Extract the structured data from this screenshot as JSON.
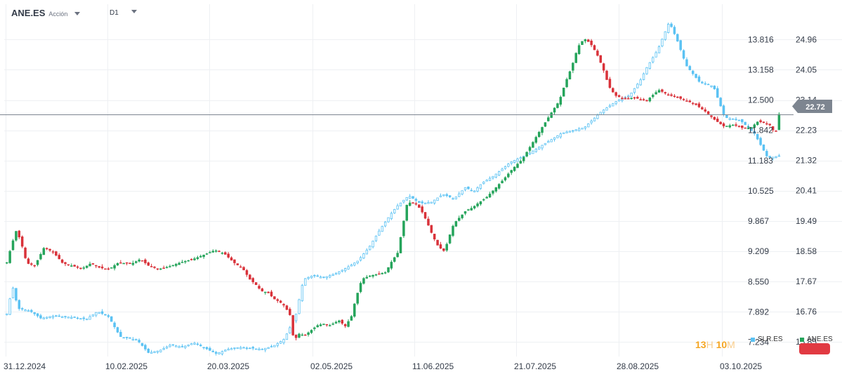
{
  "toolbar": {
    "symbol": "ANE.ES",
    "symbol_type": "Acción",
    "timeframe": "D1"
  },
  "current_price_label": "22.72",
  "timer": {
    "hours": "13",
    "h_unit": "H",
    "minutes": "10",
    "m_unit": "M"
  },
  "colors": {
    "up": "#25a45b",
    "down": "#d9323a",
    "compare": "#5bc2f3",
    "price_line": "#7d8590",
    "badge": "#e13a42"
  },
  "chart_data": {
    "type": "candlestick",
    "x_ticks": [
      "31.12.2024",
      "10.02.2025",
      "20.03.2025",
      "02.05.2025",
      "11.06.2025",
      "21.07.2025",
      "28.08.2025",
      "03.10.2025"
    ],
    "y_left_ticks": [
      "13.816",
      "13.158",
      "12.500",
      "11.842",
      "11.183",
      "10.525",
      "9.867",
      "9.209",
      "8.550",
      "7.892",
      "7.234"
    ],
    "y_right_ticks": [
      "24.96",
      "24.05",
      "23.14",
      "22.23",
      "21.32",
      "20.41",
      "19.49",
      "18.58",
      "17.67",
      "16.76",
      "15.85"
    ],
    "left_axis_range": [
      6.92,
      14.28
    ],
    "right_axis_range": [
      15.41,
      25.61
    ],
    "last_price": 22.72,
    "grid": true,
    "legend_position": "bottom-right",
    "series": [
      {
        "name": "SLR.ES",
        "axis": "left",
        "color": "#5bc2f3",
        "kf": [
          [
            0,
            7.85
          ],
          [
            5,
            8.45
          ],
          [
            10,
            7.96
          ],
          [
            20,
            7.92
          ],
          [
            30,
            7.75
          ],
          [
            40,
            7.8
          ],
          [
            55,
            7.78
          ],
          [
            70,
            7.73
          ],
          [
            80,
            7.9
          ],
          [
            90,
            7.78
          ],
          [
            100,
            7.35
          ],
          [
            115,
            7.28
          ],
          [
            125,
            7.0
          ],
          [
            135,
            7.05
          ],
          [
            145,
            7.18
          ],
          [
            155,
            7.12
          ],
          [
            165,
            7.22
          ],
          [
            175,
            7.1
          ],
          [
            185,
            6.98
          ],
          [
            195,
            7.08
          ],
          [
            205,
            7.12
          ],
          [
            215,
            7.1
          ],
          [
            225,
            7.08
          ],
          [
            235,
            7.14
          ],
          [
            245,
            7.3
          ],
          [
            255,
            7.8
          ],
          [
            262,
            8.6
          ],
          [
            270,
            8.68
          ],
          [
            280,
            8.64
          ],
          [
            290,
            8.72
          ],
          [
            300,
            8.85
          ],
          [
            310,
            9.0
          ],
          [
            320,
            9.3
          ],
          [
            330,
            9.7
          ],
          [
            340,
            10.05
          ],
          [
            345,
            10.2
          ],
          [
            355,
            10.42
          ],
          [
            365,
            10.25
          ],
          [
            375,
            10.28
          ],
          [
            385,
            10.45
          ],
          [
            395,
            10.35
          ],
          [
            405,
            10.6
          ],
          [
            412,
            10.5
          ],
          [
            420,
            10.7
          ],
          [
            430,
            10.85
          ],
          [
            445,
            11.15
          ],
          [
            460,
            11.32
          ],
          [
            475,
            11.55
          ],
          [
            490,
            11.78
          ],
          [
            510,
            11.9
          ],
          [
            525,
            12.25
          ],
          [
            540,
            12.5
          ],
          [
            550,
            12.6
          ],
          [
            560,
            12.95
          ],
          [
            565,
            13.2
          ],
          [
            575,
            13.6
          ],
          [
            585,
            14.2
          ],
          [
            592,
            13.8
          ],
          [
            600,
            13.25
          ],
          [
            612,
            12.88
          ],
          [
            624,
            12.8
          ],
          [
            634,
            12.12
          ],
          [
            648,
            12.05
          ],
          [
            660,
            11.78
          ],
          [
            672,
            11.24
          ],
          [
            682,
            11.28
          ]
        ]
      },
      {
        "name": "ANE.ES",
        "axis": "right",
        "up_color": "#25a45b",
        "down_color": "#d9323a",
        "kf": [
          [
            0,
            18.25
          ],
          [
            8,
            18.8
          ],
          [
            15,
            19.2
          ],
          [
            22,
            18.92
          ],
          [
            32,
            18.22
          ],
          [
            45,
            18.15
          ],
          [
            60,
            18.7
          ],
          [
            75,
            18.55
          ],
          [
            90,
            18.22
          ],
          [
            105,
            18.15
          ],
          [
            120,
            18.05
          ],
          [
            135,
            18.22
          ],
          [
            150,
            18.08
          ],
          [
            165,
            18.05
          ],
          [
            180,
            18.25
          ],
          [
            200,
            18.2
          ],
          [
            215,
            18.35
          ],
          [
            230,
            18.12
          ],
          [
            245,
            18.05
          ],
          [
            260,
            18.12
          ],
          [
            280,
            18.25
          ],
          [
            300,
            18.35
          ],
          [
            320,
            18.5
          ],
          [
            335,
            18.62
          ],
          [
            350,
            18.52
          ],
          [
            365,
            18.25
          ],
          [
            380,
            18.06
          ],
          [
            392,
            17.72
          ],
          [
            400,
            17.6
          ],
          [
            410,
            17.38
          ],
          [
            420,
            17.35
          ],
          [
            430,
            17.15
          ],
          [
            440,
            17.05
          ],
          [
            448,
            16.92
          ],
          [
            453,
            16.75
          ],
          [
            458,
            16.6
          ],
          [
            462,
            15.85
          ],
          [
            470,
            16.1
          ],
          [
            480,
            16.05
          ],
          [
            490,
            16.2
          ],
          [
            500,
            16.35
          ],
          [
            510,
            16.4
          ],
          [
            520,
            16.35
          ],
          [
            535,
            16.5
          ],
          [
            545,
            16.32
          ],
          [
            555,
            16.62
          ],
          [
            562,
            17.15
          ],
          [
            572,
            17.75
          ],
          [
            585,
            17.85
          ],
          [
            598,
            17.9
          ],
          [
            610,
            17.95
          ],
          [
            620,
            18.28
          ],
          [
            630,
            18.55
          ],
          [
            636,
            19.18
          ],
          [
            645,
            20.05
          ],
          [
            653,
            20.05
          ],
          [
            660,
            20.0
          ],
          [
            668,
            19.8
          ],
          [
            676,
            19.5
          ],
          [
            686,
            19.05
          ],
          [
            695,
            18.72
          ],
          [
            705,
            18.58
          ],
          [
            712,
            19.0
          ],
          [
            720,
            19.42
          ],
          [
            730,
            19.62
          ],
          [
            740,
            19.82
          ],
          [
            750,
            19.9
          ],
          [
            760,
            20.05
          ],
          [
            772,
            20.2
          ],
          [
            785,
            20.45
          ],
          [
            800,
            20.75
          ],
          [
            815,
            21.08
          ],
          [
            830,
            21.35
          ],
          [
            845,
            21.8
          ],
          [
            858,
            22.2
          ],
          [
            870,
            22.55
          ],
          [
            880,
            22.85
          ],
          [
            890,
            23.12
          ],
          [
            900,
            23.68
          ],
          [
            910,
            24.15
          ],
          [
            920,
            24.75
          ],
          [
            930,
            25.0
          ],
          [
            940,
            24.85
          ],
          [
            950,
            24.55
          ],
          [
            960,
            24.12
          ],
          [
            970,
            23.55
          ],
          [
            980,
            23.28
          ],
          [
            995,
            23.18
          ],
          [
            1010,
            23.22
          ],
          [
            1030,
            23.12
          ],
          [
            1050,
            23.45
          ],
          [
            1065,
            23.3
          ],
          [
            1080,
            23.22
          ],
          [
            1095,
            23.12
          ],
          [
            1110,
            23.0
          ],
          [
            1125,
            22.8
          ],
          [
            1140,
            22.55
          ],
          [
            1155,
            22.35
          ],
          [
            1170,
            22.4
          ],
          [
            1185,
            22.3
          ],
          [
            1198,
            22.3
          ],
          [
            1210,
            22.5
          ],
          [
            1220,
            22.45
          ],
          [
            1230,
            22.38
          ],
          [
            1238,
            22.1
          ],
          [
            1244,
            22.72
          ]
        ]
      }
    ]
  },
  "legend": [
    {
      "name": "SLR.ES",
      "color": "#5bc2f3"
    },
    {
      "name": "ANE.ES",
      "color": "#25a45b"
    }
  ]
}
